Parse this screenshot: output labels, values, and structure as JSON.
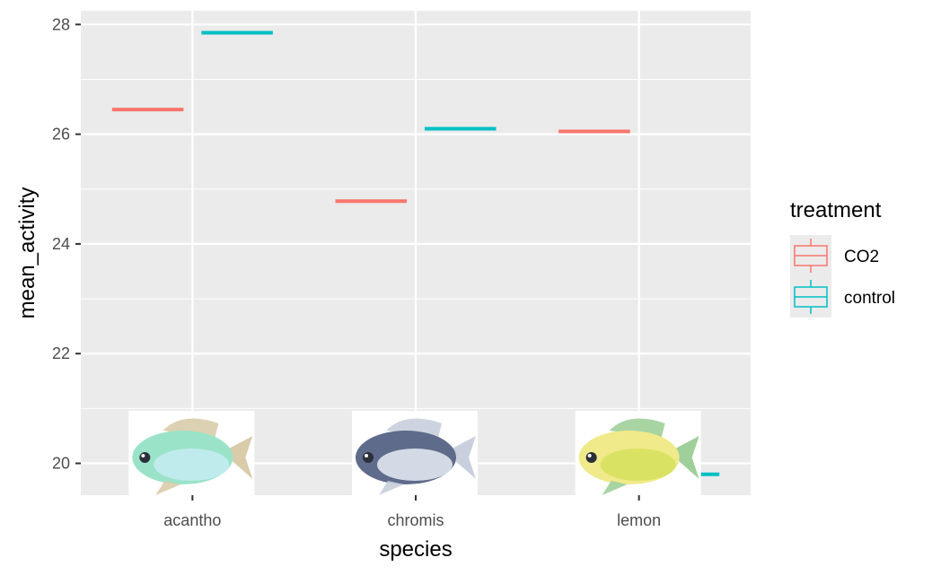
{
  "chart_data": {
    "type": "boxplot",
    "categories": [
      "acantho",
      "chromis",
      "lemon"
    ],
    "xlabel": "species",
    "ylabel": "mean_activity",
    "ylim": [
      19.42,
      28.25
    ],
    "yticks": [
      20,
      22,
      24,
      26,
      28
    ],
    "grid": true,
    "legend": {
      "title": "treatment",
      "position": "right"
    },
    "series": [
      {
        "name": "CO2",
        "color": "#F8766D",
        "values": [
          26.45,
          24.78,
          26.05
        ]
      },
      {
        "name": "control",
        "color": "#00BFC4",
        "values": [
          27.85,
          26.1,
          19.8
        ]
      }
    ],
    "images": [
      {
        "category": "acantho",
        "icon": "fish-acantho-icon",
        "palette": [
          "#9be3c8",
          "#c7ecf2",
          "#d8ccaa"
        ]
      },
      {
        "category": "chromis",
        "icon": "fish-chromis-icon",
        "palette": [
          "#5f6b8a",
          "#e8ecf5",
          "#c9cfdc"
        ]
      },
      {
        "category": "lemon",
        "icon": "fish-lemon-icon",
        "palette": [
          "#f0ea8a",
          "#d6e05c",
          "#9fcf9a"
        ]
      }
    ]
  }
}
